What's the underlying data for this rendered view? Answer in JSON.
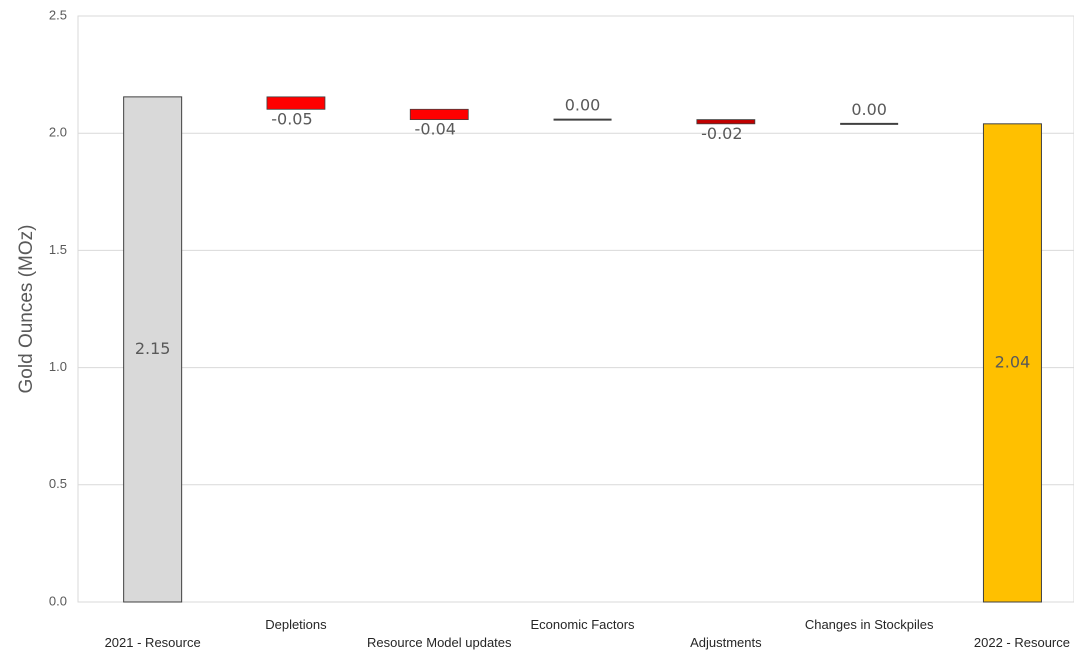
{
  "chart_data": {
    "type": "bar",
    "subtype": "waterfall",
    "title": "",
    "xlabel": "",
    "ylabel": "Gold Ounces (MOz)",
    "ylim": [
      0,
      2.5
    ],
    "yticks": [
      "0.0",
      "0.5",
      "1.0",
      "1.5",
      "2.0",
      "2.5"
    ],
    "grid": true,
    "legend": "none",
    "categories": [
      "2021 - Resource",
      "Depletions",
      "Resource Model updates",
      "Economic Factors",
      "Adjustments",
      "Changes in Stockpiles",
      "2022 - Resource"
    ],
    "values": [
      2.15,
      -0.05,
      -0.04,
      0.0,
      -0.02,
      0.0,
      2.04
    ],
    "data_labels": [
      "2.15",
      "-0.05",
      "-0.04",
      "0.00",
      "-0.02",
      "0.00",
      "2.04"
    ],
    "bar_kind": [
      "total",
      "delta",
      "delta",
      "delta",
      "delta",
      "delta",
      "total"
    ],
    "bar_base": [
      0,
      2.155,
      2.102,
      2.058,
      2.058,
      2.04,
      0
    ],
    "bar_top": [
      2.155,
      2.102,
      2.058,
      2.058,
      2.04,
      2.04,
      2.04
    ],
    "colors": {
      "start_total": "#d9d9d9",
      "end_total": "#ffc000",
      "decrease": "#ff0000",
      "decrease_small": "#c00000",
      "zero_line": "#404040",
      "bar_border": "#404040",
      "grid": "#d9d9d9"
    }
  }
}
